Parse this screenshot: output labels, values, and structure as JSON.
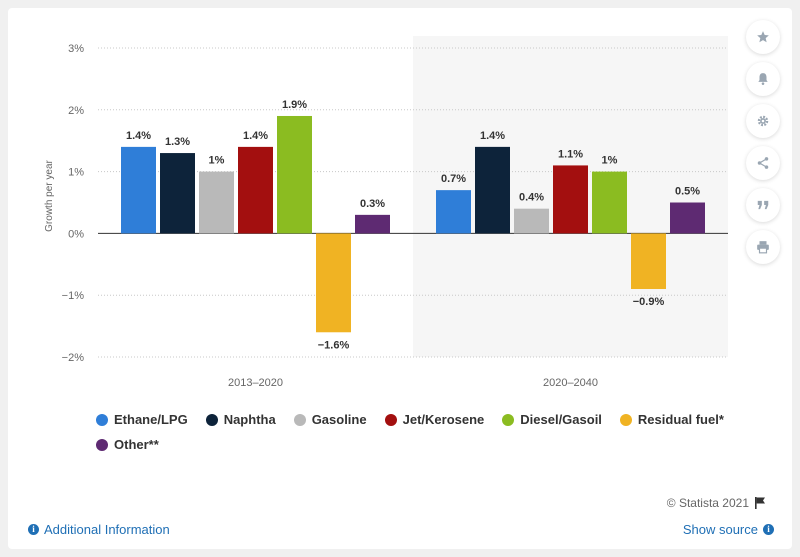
{
  "chart_data": {
    "type": "bar",
    "categories": [
      "2013-2020",
      "2020-2040"
    ],
    "series": [
      {
        "name": "Ethane/LPG",
        "color": "#2f7ed8",
        "values": [
          1.4,
          0.7
        ],
        "labels": [
          "1.4%",
          "0.7%"
        ]
      },
      {
        "name": "Naphtha",
        "color": "#0d233a",
        "values": [
          1.3,
          1.4
        ],
        "labels": [
          "1.3%",
          "1.4%"
        ]
      },
      {
        "name": "Gasoline",
        "color": "#b9b9b9",
        "values": [
          1.0,
          0.4
        ],
        "labels": [
          "1%",
          "0.4%"
        ]
      },
      {
        "name": "Jet/Kerosene",
        "color": "#a30f0f",
        "values": [
          1.4,
          1.1
        ],
        "labels": [
          "1.4%",
          "1.1%"
        ]
      },
      {
        "name": "Diesel/Gasoil",
        "color": "#8bbc21",
        "values": [
          1.9,
          1.0
        ],
        "labels": [
          "1.9%",
          "1%"
        ]
      },
      {
        "name": "Residual fuel*",
        "color": "#f0b323",
        "values": [
          -1.6,
          -0.9
        ],
        "labels": [
          "−1.6%",
          "−0.9%"
        ]
      },
      {
        "name": "Other**",
        "color": "#5e2a72",
        "values": [
          0.3,
          0.5
        ],
        "labels": [
          "0.3%",
          "0.5%"
        ]
      }
    ],
    "category_labels": [
      "2013–2020",
      "2020–2040"
    ],
    "ylabel": "Growth per year",
    "ylim": [
      -2,
      3
    ],
    "yticks": [
      3,
      2,
      1,
      0,
      -1,
      -2
    ],
    "ytick_labels": [
      "3%",
      "2%",
      "1%",
      "0%",
      "−1%",
      "−2%"
    ],
    "grid": true,
    "legend_position": "bottom-left",
    "highlighted_category": "2020-2040"
  },
  "legend": {
    "items": [
      {
        "label": "Ethane/LPG",
        "color": "#2f7ed8"
      },
      {
        "label": "Naphtha",
        "color": "#0d233a"
      },
      {
        "label": "Gasoline",
        "color": "#b9b9b9"
      },
      {
        "label": "Jet/Kerosene",
        "color": "#a30f0f"
      },
      {
        "label": "Diesel/Gasoil",
        "color": "#8bbc21"
      },
      {
        "label": "Residual fuel*",
        "color": "#f0b323"
      },
      {
        "label": "Other**",
        "color": "#5e2a72"
      }
    ]
  },
  "sidebar": {
    "buttons": [
      {
        "name": "star-button",
        "icon": "star-icon"
      },
      {
        "name": "bell-button",
        "icon": "bell-icon"
      },
      {
        "name": "settings-button",
        "icon": "gear-icon"
      },
      {
        "name": "share-button",
        "icon": "share-icon"
      },
      {
        "name": "cite-button",
        "icon": "quote-icon"
      },
      {
        "name": "print-button",
        "icon": "printer-icon"
      }
    ]
  },
  "footer": {
    "credit": "© Statista 2021",
    "additional_info": "Additional Information",
    "show_source": "Show source",
    "link_color": "#1f6fb5"
  }
}
